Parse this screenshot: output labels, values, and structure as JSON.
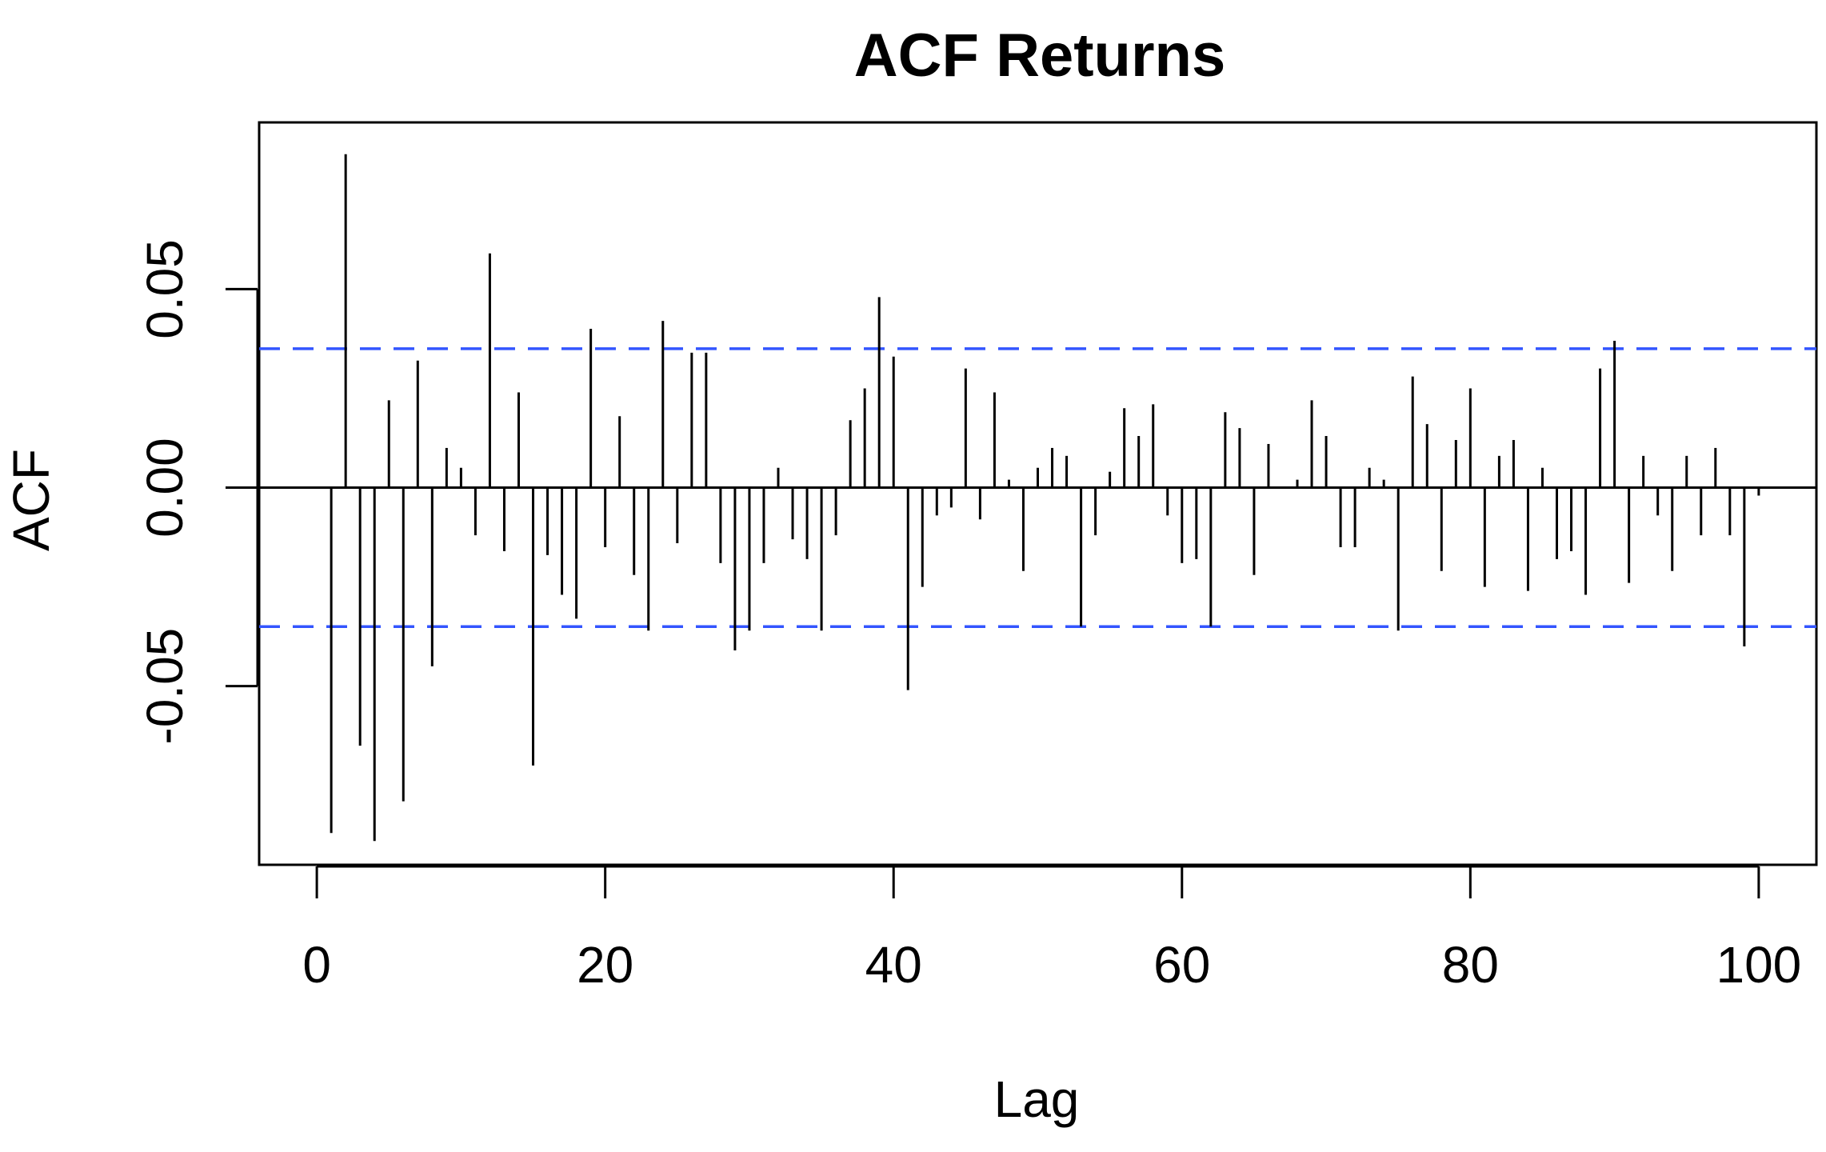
{
  "chart_data": {
    "type": "bar",
    "title": "ACF Returns",
    "xlabel": "Lag",
    "ylabel": "ACF",
    "xlim": [
      -4,
      104
    ],
    "ylim": [
      -0.095,
      0.092
    ],
    "x_ticks": [
      0,
      20,
      40,
      60,
      80,
      100
    ],
    "x_tick_labels": [
      "0",
      "20",
      "40",
      "60",
      "80",
      "100"
    ],
    "y_ticks": [
      -0.05,
      0.0,
      0.05
    ],
    "y_tick_labels": [
      "-0.05",
      "0.00",
      "0.05"
    ],
    "confidence_bounds": [
      0.035,
      -0.035
    ],
    "confidence_color": "#3355ff",
    "bar_color": "#000000",
    "grid": false,
    "lags": [
      1,
      2,
      3,
      4,
      5,
      6,
      7,
      8,
      9,
      10,
      11,
      12,
      13,
      14,
      15,
      16,
      17,
      18,
      19,
      20,
      21,
      22,
      23,
      24,
      25,
      26,
      27,
      28,
      29,
      30,
      31,
      32,
      33,
      34,
      35,
      36,
      37,
      38,
      39,
      40,
      41,
      42,
      43,
      44,
      45,
      46,
      47,
      48,
      49,
      50,
      51,
      52,
      53,
      54,
      55,
      56,
      57,
      58,
      59,
      60,
      61,
      62,
      63,
      64,
      65,
      66,
      67,
      68,
      69,
      70,
      71,
      72,
      73,
      74,
      75,
      76,
      77,
      78,
      79,
      80,
      81,
      82,
      83,
      84,
      85,
      86,
      87,
      88,
      89,
      90,
      91,
      92,
      93,
      94,
      95,
      96,
      97,
      98,
      99,
      100
    ],
    "values": [
      -0.087,
      0.084,
      -0.065,
      -0.089,
      0.022,
      -0.079,
      0.032,
      -0.045,
      0.01,
      0.005,
      -0.012,
      0.059,
      -0.016,
      0.024,
      -0.07,
      -0.017,
      -0.027,
      -0.033,
      0.04,
      -0.015,
      0.018,
      -0.022,
      -0.036,
      0.042,
      -0.014,
      0.034,
      0.034,
      -0.019,
      -0.041,
      -0.036,
      -0.019,
      0.005,
      -0.013,
      -0.018,
      -0.036,
      -0.012,
      0.017,
      0.025,
      0.048,
      0.033,
      -0.051,
      -0.025,
      -0.007,
      -0.005,
      0.03,
      -0.008,
      0.024,
      0.002,
      -0.021,
      0.005,
      0.01,
      0.008,
      -0.035,
      -0.012,
      0.004,
      0.02,
      0.013,
      0.021,
      -0.007,
      -0.019,
      -0.018,
      -0.035,
      0.019,
      0.015,
      -0.022,
      0.011,
      0.0,
      0.002,
      0.022,
      0.013,
      -0.015,
      -0.015,
      0.005,
      0.002,
      -0.036,
      0.028,
      0.016,
      -0.021,
      0.012,
      0.025,
      -0.025,
      0.008,
      0.012,
      -0.026,
      0.005,
      -0.018,
      -0.016,
      -0.027,
      0.03,
      0.037,
      -0.024,
      0.008,
      -0.007,
      -0.021,
      0.008,
      -0.012,
      0.01,
      -0.012,
      -0.04,
      -0.002
    ]
  }
}
